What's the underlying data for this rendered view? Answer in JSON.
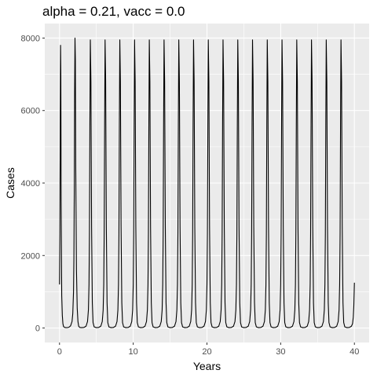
{
  "chart_data": {
    "type": "line",
    "title": "alpha = 0.21, vacc = 0.0",
    "xlabel": "Years",
    "ylabel": "Cases",
    "xlim": [
      -2.0,
      42.0
    ],
    "ylim": [
      -400,
      8400
    ],
    "x_ticks": [
      0,
      10,
      20,
      30,
      40
    ],
    "y_ticks": [
      0,
      2000,
      4000,
      6000,
      8000
    ],
    "x_tick_labels": [
      "0",
      "10",
      "20",
      "30",
      "40"
    ],
    "y_tick_labels": [
      "0",
      "2000",
      "4000",
      "6000",
      "8000"
    ],
    "grid": true,
    "legend": "none",
    "series": [
      {
        "color": "#000000",
        "x": [
          0,
          0.05,
          0.1,
          0.14,
          0.18,
          0.22,
          0.3,
          0.38,
          0.46,
          0.55,
          0.7,
          0.9,
          1.1,
          1.3,
          1.5,
          1.7,
          1.8,
          1.9,
          1.95,
          2.0,
          2.05,
          2.1,
          2.15,
          2.2,
          2.3,
          2.4,
          2.5,
          2.6,
          2.75,
          3.0,
          3.3,
          3.6,
          3.8,
          3.92,
          4.0,
          4.06,
          4.12,
          4.18,
          4.26,
          4.35,
          4.45,
          4.55,
          4.7,
          5.0,
          5.3,
          5.6,
          5.8,
          5.92,
          6.0,
          6.06,
          6.12,
          6.18,
          6.26,
          6.35,
          6.45,
          6.55,
          6.7,
          7.0,
          7.3,
          7.6,
          7.8,
          7.92,
          8.0,
          8.06,
          8.12,
          8.18,
          8.26,
          8.35,
          8.45,
          8.55,
          8.7,
          9.0,
          9.3,
          9.6,
          9.8,
          9.92,
          10.0,
          10.06,
          10.12,
          10.18,
          10.26,
          10.35,
          10.45,
          10.55,
          10.7,
          11.0,
          11.3,
          11.6,
          11.8,
          11.92,
          12.0,
          12.06,
          12.12,
          12.18,
          12.26,
          12.35,
          12.45,
          12.55,
          12.7,
          13.0,
          13.3,
          13.6,
          13.8,
          13.92,
          14.0,
          14.06,
          14.12,
          14.18,
          14.26,
          14.35,
          14.45,
          14.55,
          14.7,
          15.0,
          15.3,
          15.6,
          15.8,
          15.92,
          16.0,
          16.06,
          16.12,
          16.18,
          16.26,
          16.35,
          16.45,
          16.55,
          16.7,
          17.0,
          17.3,
          17.6,
          17.8,
          17.92,
          18.0,
          18.06,
          18.12,
          18.18,
          18.26,
          18.35,
          18.45,
          18.55,
          18.7,
          19.0,
          19.3,
          19.6,
          19.8,
          19.92,
          20.0,
          20.06,
          20.12,
          20.18,
          20.26,
          20.35,
          20.45,
          20.55,
          20.7,
          21.0,
          21.3,
          21.6,
          21.8,
          21.92,
          22.0,
          22.06,
          22.12,
          22.18,
          22.26,
          22.35,
          22.45,
          22.55,
          22.7,
          23.0,
          23.3,
          23.6,
          23.8,
          23.92,
          24.0,
          24.06,
          24.12,
          24.18,
          24.26,
          24.35,
          24.45,
          24.55,
          24.7,
          25.0,
          25.3,
          25.6,
          25.8,
          25.92,
          26.0,
          26.06,
          26.12,
          26.18,
          26.26,
          26.35,
          26.45,
          26.55,
          26.7,
          27.0,
          27.3,
          27.6,
          27.8,
          27.92,
          28.0,
          28.06,
          28.12,
          28.18,
          28.26,
          28.35,
          28.45,
          28.55,
          28.7,
          29.0,
          29.3,
          29.6,
          29.8,
          29.92,
          30.0,
          30.06,
          30.12,
          30.18,
          30.26,
          30.35,
          30.45,
          30.55,
          30.7,
          31.0,
          31.3,
          31.6,
          31.8,
          31.92,
          32.0,
          32.06,
          32.12,
          32.18,
          32.26,
          32.35,
          32.45,
          32.55,
          32.7,
          33.0,
          33.3,
          33.6,
          33.8,
          33.92,
          34.0,
          34.06,
          34.12,
          34.18,
          34.26,
          34.35,
          34.45,
          34.55,
          34.7,
          35.0,
          35.3,
          35.6,
          35.8,
          35.92,
          36.0,
          36.06,
          36.12,
          36.18,
          36.26,
          36.35,
          36.45,
          36.55,
          36.7,
          37.0,
          37.3,
          37.6,
          37.8,
          37.92,
          38.0,
          38.06,
          38.12,
          38.18,
          38.26,
          38.35,
          38.45,
          38.55,
          38.7,
          39.0,
          39.3,
          39.6,
          39.75,
          39.85,
          39.92,
          39.97,
          40.0
        ],
        "y": [
          1200,
          2600,
          5800,
          7800,
          7000,
          3500,
          900,
          350,
          120,
          40,
          15,
          10,
          12,
          25,
          60,
          180,
          400,
          1000,
          1900,
          3700,
          6500,
          8000,
          7400,
          4500,
          1600,
          550,
          180,
          50,
          15,
          10,
          15,
          50,
          180,
          500,
          1200,
          2600,
          5600,
          7950,
          6800,
          2800,
          700,
          150,
          30,
          10,
          15,
          50,
          180,
          500,
          1200,
          2600,
          5600,
          7950,
          6800,
          2800,
          700,
          150,
          30,
          10,
          15,
          50,
          180,
          500,
          1200,
          2600,
          5600,
          7950,
          6800,
          2800,
          700,
          150,
          30,
          10,
          15,
          50,
          180,
          500,
          1200,
          2600,
          5600,
          7950,
          6800,
          2800,
          700,
          150,
          30,
          10,
          15,
          50,
          180,
          500,
          1200,
          2600,
          5600,
          7950,
          6800,
          2800,
          700,
          150,
          30,
          10,
          15,
          50,
          180,
          500,
          1200,
          2600,
          5600,
          7950,
          6800,
          2800,
          700,
          150,
          30,
          10,
          15,
          50,
          180,
          500,
          1200,
          2600,
          5600,
          7950,
          6800,
          2800,
          700,
          150,
          30,
          10,
          15,
          50,
          180,
          500,
          1200,
          2600,
          5600,
          7950,
          6800,
          2800,
          700,
          150,
          30,
          10,
          15,
          50,
          180,
          500,
          1200,
          2600,
          5600,
          7950,
          6800,
          2800,
          700,
          150,
          30,
          10,
          15,
          50,
          180,
          500,
          1200,
          2600,
          5600,
          7950,
          6800,
          2800,
          700,
          150,
          30,
          10,
          15,
          50,
          180,
          500,
          1200,
          2600,
          5600,
          7950,
          6800,
          2800,
          700,
          150,
          30,
          10,
          15,
          50,
          180,
          500,
          1200,
          2600,
          5600,
          7950,
          6800,
          2800,
          700,
          150,
          30,
          10,
          15,
          50,
          180,
          500,
          1200,
          2600,
          5600,
          7950,
          6800,
          2800,
          700,
          150,
          30,
          10,
          15,
          50,
          180,
          500,
          1200,
          2600,
          5600,
          7950,
          6800,
          2800,
          700,
          150,
          30,
          10,
          15,
          50,
          180,
          500,
          1200,
          2600,
          5600,
          7950,
          6800,
          2800,
          700,
          150,
          30,
          10,
          15,
          50,
          180,
          500,
          1200,
          2600,
          5600,
          7950,
          6800,
          2800,
          700,
          150,
          30,
          10,
          15,
          50,
          180,
          500,
          1200,
          2600,
          5600,
          7950,
          6800,
          2800,
          700,
          150,
          30,
          10,
          15,
          50,
          180,
          500,
          1200,
          2600,
          5600,
          7950,
          6800,
          2800,
          700,
          150,
          30,
          10,
          15,
          50,
          120,
          300,
          600,
          1000,
          1250
        ]
      }
    ]
  }
}
